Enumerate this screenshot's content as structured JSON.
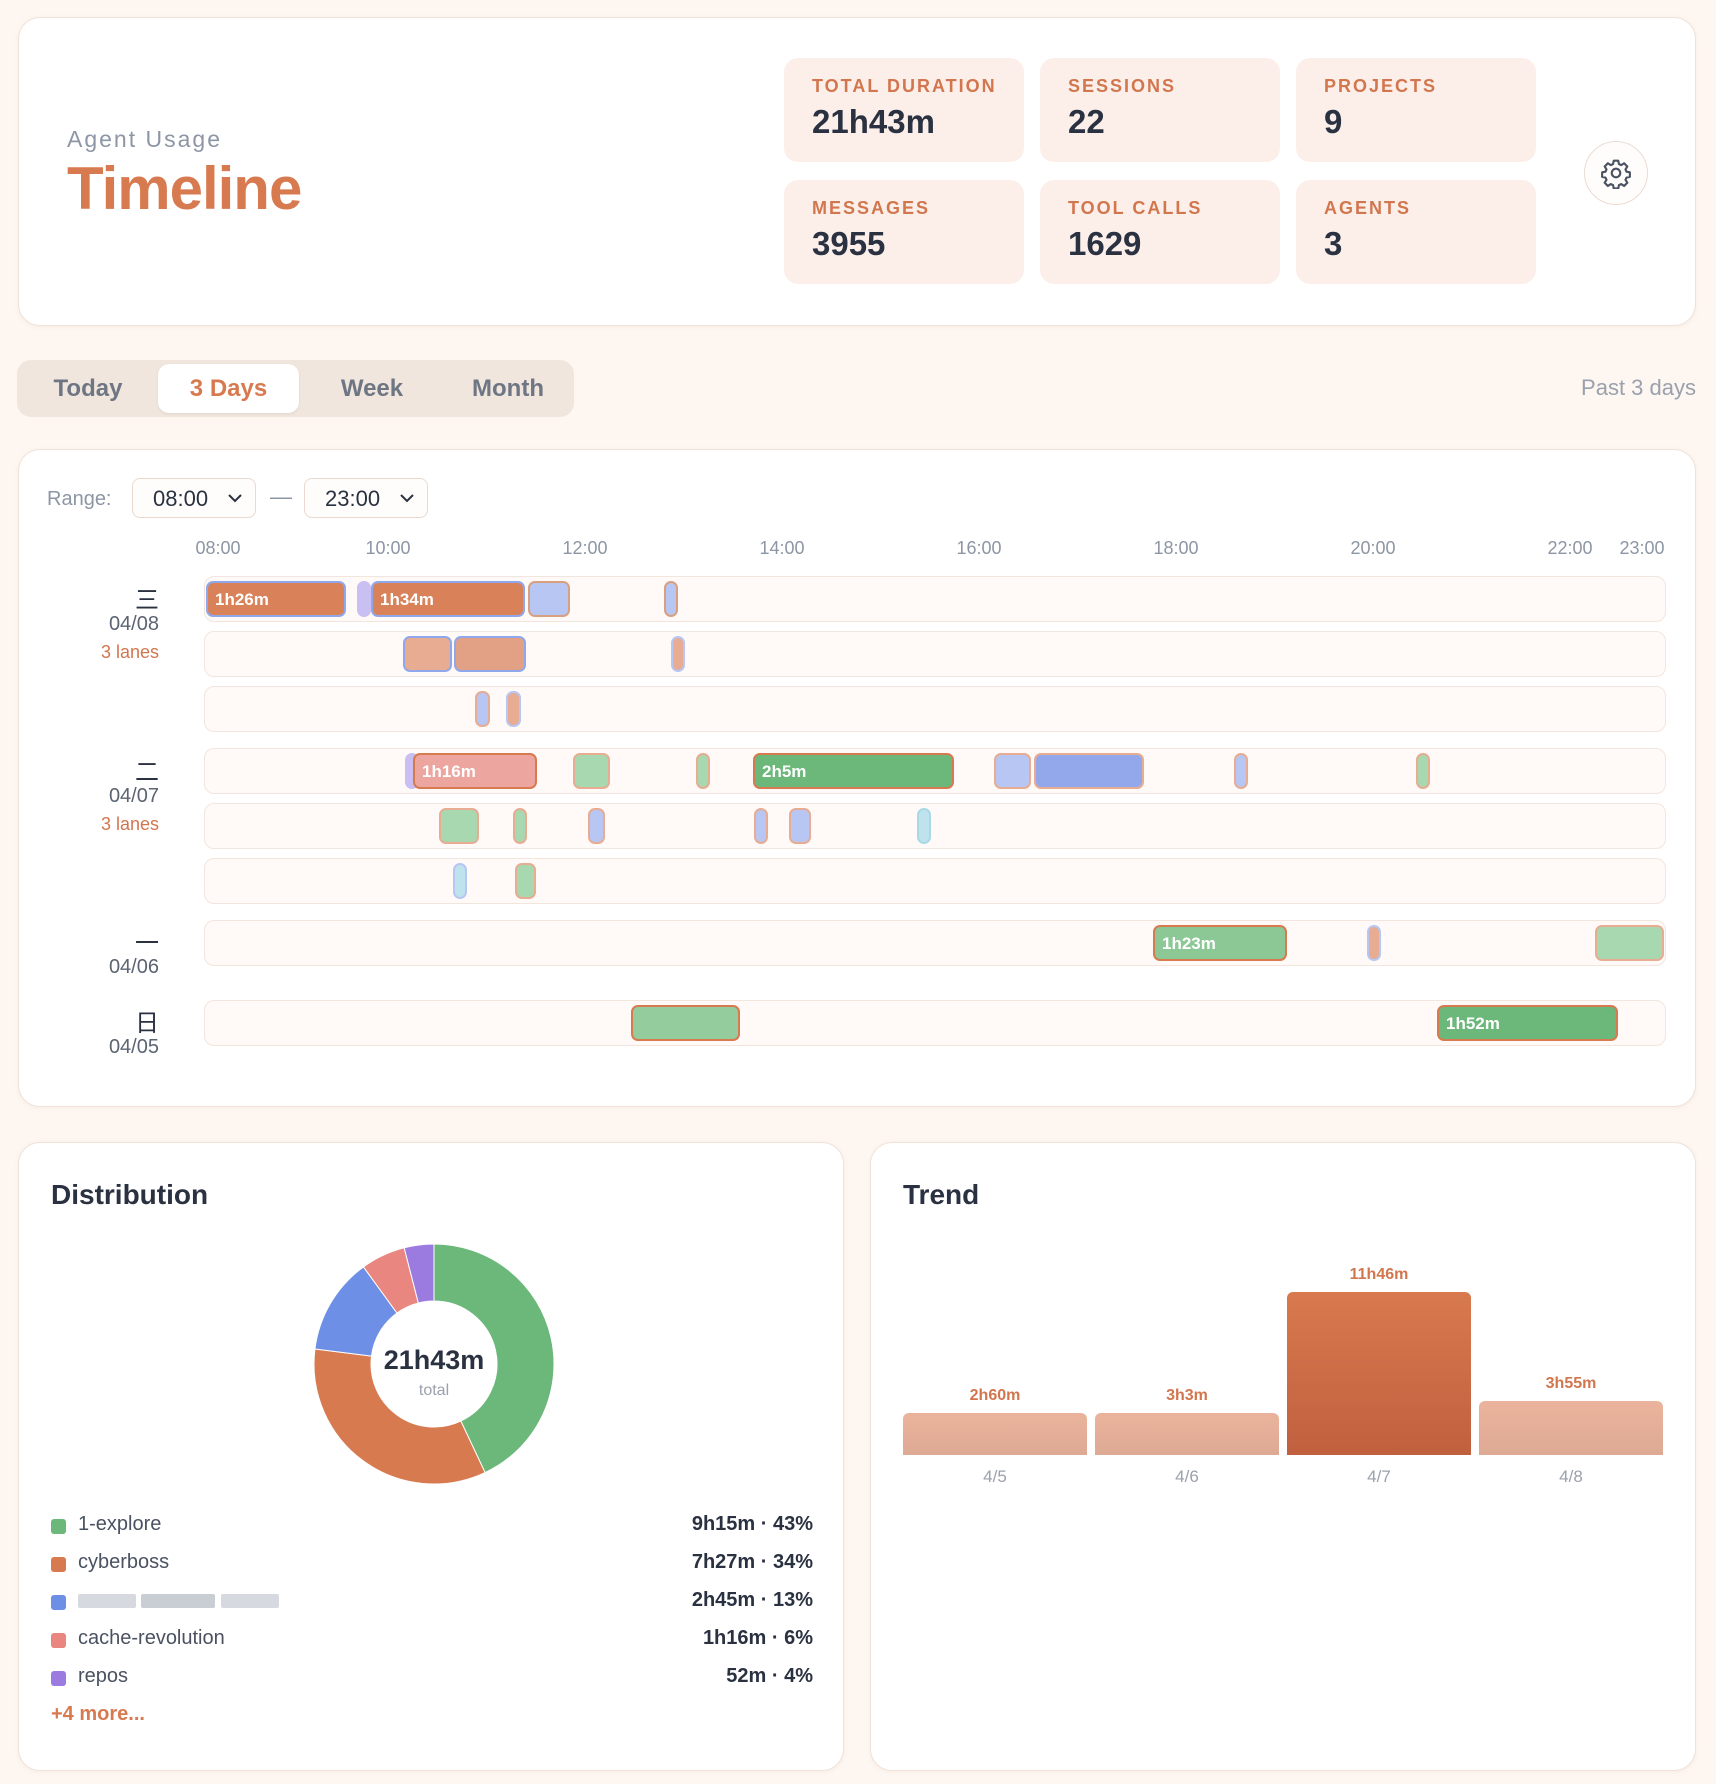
{
  "header": {
    "subtitle": "Agent Usage",
    "title": "Timeline",
    "stats": [
      {
        "label": "TOTAL DURATION",
        "value": "21h43m"
      },
      {
        "label": "SESSIONS",
        "value": "22"
      },
      {
        "label": "PROJECTS",
        "value": "9"
      },
      {
        "label": "MESSAGES",
        "value": "3955"
      },
      {
        "label": "TOOL CALLS",
        "value": "1629"
      },
      {
        "label": "AGENTS",
        "value": "3"
      }
    ],
    "settings_icon": "gear-icon"
  },
  "tabs": [
    {
      "label": "Today",
      "active": false
    },
    {
      "label": "3 Days",
      "active": true
    },
    {
      "label": "Week",
      "active": false
    },
    {
      "label": "Month",
      "active": false
    }
  ],
  "range_caption": "Past 3 days",
  "timeline": {
    "range_label": "Range:",
    "range_start": "08:00",
    "range_end": "23:00",
    "range_dash": "—",
    "ticks": [
      "08:00",
      "10:00",
      "12:00",
      "14:00",
      "16:00",
      "18:00",
      "20:00",
      "22:00",
      "23:00"
    ],
    "days": [
      {
        "glyph": "三",
        "date": "04/08",
        "lanes_label": "3 lanes"
      },
      {
        "glyph": "二",
        "date": "04/07",
        "lanes_label": "3 lanes"
      },
      {
        "glyph": "一",
        "date": "04/06",
        "lanes_label": ""
      },
      {
        "glyph": "日",
        "date": "04/05",
        "lanes_label": ""
      }
    ],
    "segment_labels": [
      "1h26m",
      "1h34m",
      "1h16m",
      "2h5m",
      "1h23m",
      "1h52m"
    ]
  },
  "distribution": {
    "title": "Distribution",
    "total": "21h43m",
    "total_caption": "total",
    "items": [
      {
        "name": "1-explore",
        "value": "9h15m · 43%",
        "color": "#6bb87a",
        "fraction": 0.43
      },
      {
        "name": "cyberboss",
        "value": "7h27m · 34%",
        "color": "#d87a50",
        "fraction": 0.34
      },
      {
        "name": "",
        "value": "2h45m · 13%",
        "color": "#6e8fe6",
        "fraction": 0.13
      },
      {
        "name": "cache-revolution",
        "value": "1h16m · 6%",
        "color": "#e8867f",
        "fraction": 0.06
      },
      {
        "name": "repos",
        "value": "52m · 4%",
        "color": "#9b7be0",
        "fraction": 0.04
      }
    ],
    "more": "+4 more..."
  },
  "trend": {
    "title": "Trend",
    "bars": [
      {
        "label": "4/5",
        "value_label": "2h60m",
        "hours": 3.0
      },
      {
        "label": "4/6",
        "value_label": "3h3m",
        "hours": 3.05
      },
      {
        "label": "4/7",
        "value_label": "11h46m",
        "hours": 11.77
      },
      {
        "label": "4/8",
        "value_label": "3h55m",
        "hours": 3.92
      }
    ]
  },
  "colors": {
    "accent": "#d87a50",
    "green": "#6bb87a",
    "blue": "#8fa8ec",
    "salmon": "#e8a0a0",
    "purple": "#b9a6ec",
    "cyan": "#a9d8e6"
  }
}
